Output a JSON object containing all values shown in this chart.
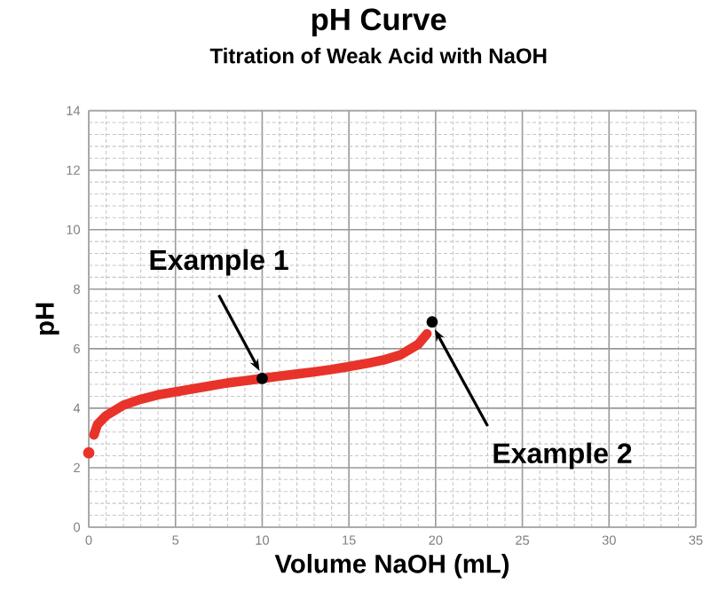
{
  "chart_data": {
    "type": "line",
    "title": "pH Curve",
    "subtitle": "Titration of Weak Acid with NaOH",
    "xlabel": "Volume NaOH (mL)",
    "ylabel": "pH",
    "xlim": [
      0,
      35
    ],
    "xticks": [
      0,
      5,
      10,
      15,
      20,
      25,
      30,
      35
    ],
    "ylim": [
      0,
      14
    ],
    "yticks": [
      0,
      2,
      4,
      6,
      8,
      10,
      12,
      14
    ],
    "grid": true,
    "series": [
      {
        "type": "scatter",
        "color": "#e8332a",
        "x": [
          0
        ],
        "values": [
          2.5
        ],
        "marker": "circle"
      },
      {
        "color": "#e8332a",
        "x": [
          0.3,
          0.5,
          1,
          2,
          3,
          4,
          5,
          6,
          7,
          8,
          9,
          10,
          11,
          12,
          13,
          14,
          15,
          16,
          17,
          18,
          19,
          19.5
        ],
        "values": [
          3.1,
          3.45,
          3.75,
          4.1,
          4.3,
          4.45,
          4.55,
          4.65,
          4.75,
          4.85,
          4.92,
          5.0,
          5.08,
          5.15,
          5.22,
          5.3,
          5.4,
          5.5,
          5.62,
          5.8,
          6.15,
          6.5
        ],
        "marker": "none"
      },
      {
        "type": "scatter",
        "color": "#000000",
        "x": [
          10,
          19.8
        ],
        "values": [
          5.0,
          6.9
        ],
        "marker": "circle"
      }
    ],
    "annotations": [
      {
        "text": "Example 1",
        "x": 10,
        "y": 5.0
      },
      {
        "text": "Example 2",
        "x": 19.8,
        "y": 6.9
      }
    ]
  }
}
